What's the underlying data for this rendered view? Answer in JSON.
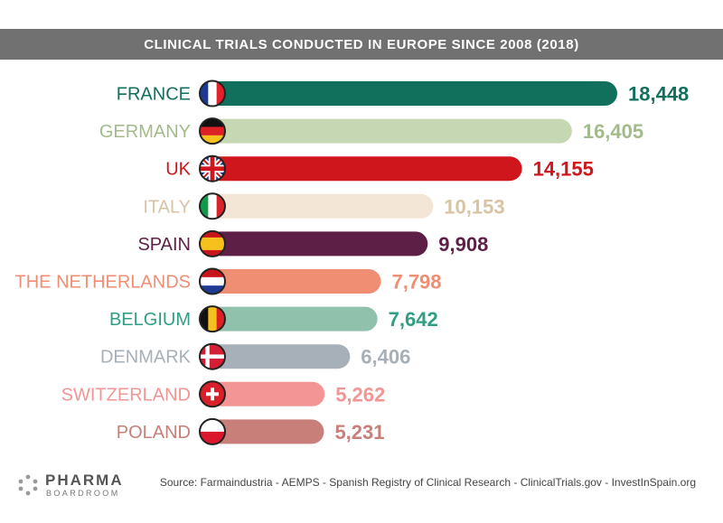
{
  "chart_data": {
    "type": "bar",
    "orientation": "horizontal",
    "title": "CLINICAL TRIALS CONDUCTED IN EUROPE SINCE 2008 (2018)",
    "xlim": [
      0,
      18448
    ],
    "categories": [
      "FRANCE",
      "GERMANY",
      "UK",
      "ITALY",
      "SPAIN",
      "THE NETHERLANDS",
      "BELGIUM",
      "DENMARK",
      "SWITZERLAND",
      "POLAND"
    ],
    "values": [
      18448,
      16405,
      14155,
      10153,
      9908,
      7798,
      7642,
      6406,
      5262,
      5231
    ],
    "value_labels": [
      "18,448",
      "16,405",
      "14,155",
      "10,153",
      "9,908",
      "7,798",
      "7,642",
      "6,406",
      "5,262",
      "5,231"
    ],
    "colors": [
      "#11705c",
      "#c6d8b3",
      "#cf161c",
      "#f4e6d6",
      "#5d1f46",
      "#f08e73",
      "#8fc1ad",
      "#a7b0b8",
      "#f39594",
      "#c97f79"
    ],
    "label_colors": [
      "#11705c",
      "#a3bb8b",
      "#cf161c",
      "#d8c3a3",
      "#5d1f46",
      "#f08e73",
      "#2f9e85",
      "#a7b0b8",
      "#f39594",
      "#c97f79"
    ],
    "value_colors": [
      "#11705c",
      "#a3bb8b",
      "#cf161c",
      "#d8c3a3",
      "#5d1f46",
      "#f08e73",
      "#2f9e85",
      "#a7b0b8",
      "#f39594",
      "#c97f79"
    ],
    "flag_icons": [
      "france-flag-icon",
      "germany-flag-icon",
      "uk-flag-icon",
      "italy-flag-icon",
      "spain-flag-icon",
      "netherlands-flag-icon",
      "belgium-flag-icon",
      "denmark-flag-icon",
      "switzerland-flag-icon",
      "poland-flag-icon"
    ]
  },
  "footer": {
    "logo_top": "PHARMA",
    "logo_bottom": "BOARDROOM",
    "source": "Source:  Farmaindustria - AEMPS - Spanish Registry of Clinical Research - ClinicalTrials.gov - InvestInSpain.org"
  }
}
